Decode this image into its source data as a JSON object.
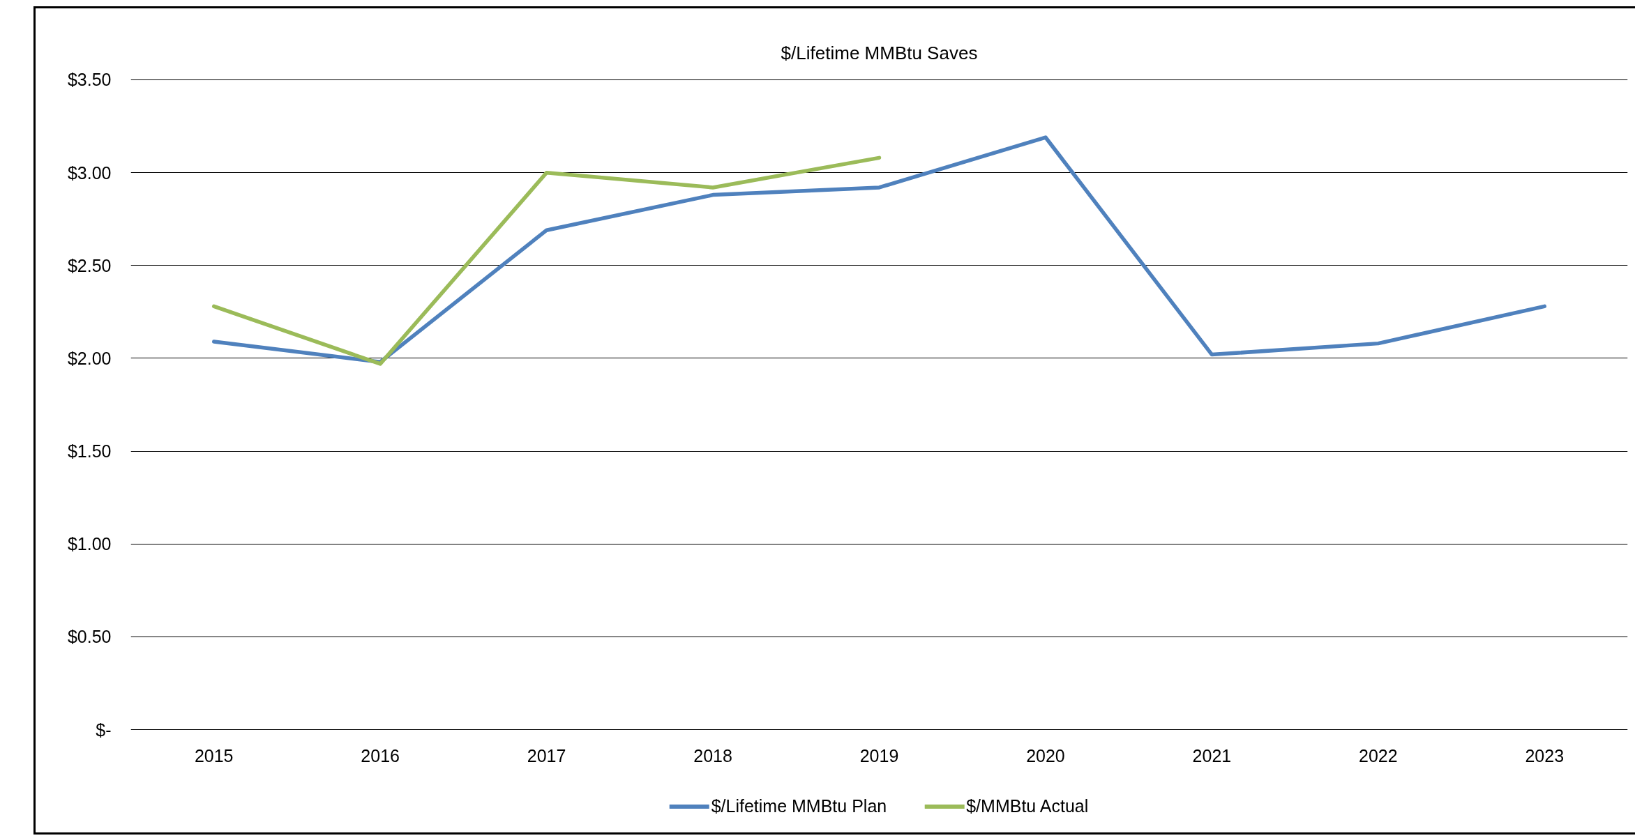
{
  "chart_data": {
    "type": "line",
    "title": "$/Lifetime MMBtu Saves",
    "categories": [
      "2015",
      "2016",
      "2017",
      "2018",
      "2019",
      "2020",
      "2021",
      "2022",
      "2023"
    ],
    "series": [
      {
        "name": "$/Lifetime MMBtu Plan",
        "color": "#4f81bd",
        "values": [
          2.09,
          1.98,
          2.69,
          2.88,
          2.92,
          3.19,
          2.02,
          2.08,
          2.28
        ]
      },
      {
        "name": "$/MMBtu Actual",
        "color": "#9bbb59",
        "values": [
          2.28,
          1.97,
          3.0,
          2.92,
          3.08,
          null,
          null,
          null,
          null
        ]
      }
    ],
    "ylim": [
      0,
      3.5
    ],
    "yticks": [
      {
        "value": 0,
        "label": "$-"
      },
      {
        "value": 0.5,
        "label": "$0.50"
      },
      {
        "value": 1.0,
        "label": "$1.00"
      },
      {
        "value": 1.5,
        "label": "$1.50"
      },
      {
        "value": 2.0,
        "label": "$2.00"
      },
      {
        "value": 2.5,
        "label": "$2.50"
      },
      {
        "value": 3.0,
        "label": "$3.00"
      },
      {
        "value": 3.5,
        "label": "$3.50"
      }
    ],
    "grid": "y",
    "legend": "bottom"
  }
}
